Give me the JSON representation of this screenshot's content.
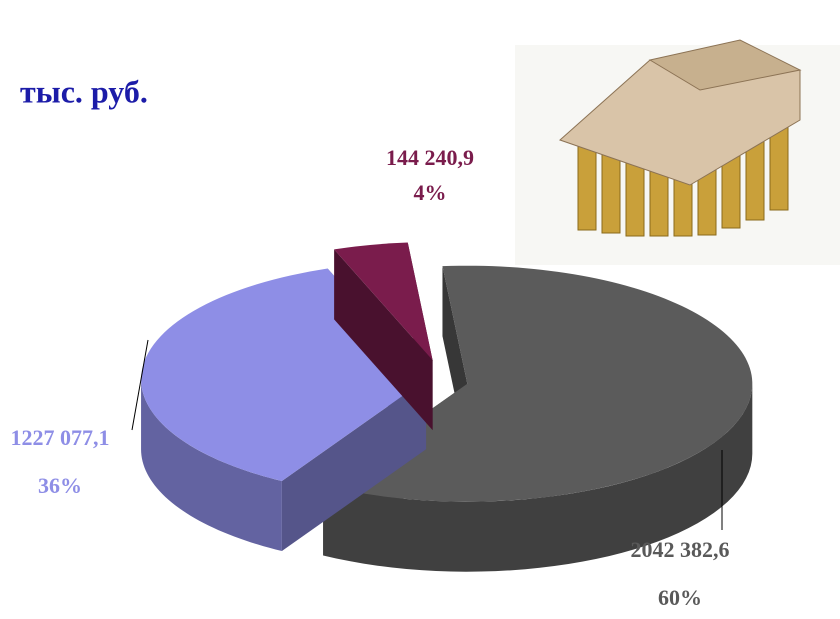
{
  "chart_data": {
    "type": "pie3d",
    "subtitle": "тыс. руб.",
    "values": [
      2042382.6,
      1227077.1,
      144240.9
    ],
    "value_labels": [
      "2042 382,6",
      "1227 077,1",
      "144 240,9"
    ],
    "percents": [
      {
        "value": 60,
        "label": "60%"
      },
      {
        "value": 36,
        "label": "36%"
      },
      {
        "value": 4,
        "label": "4%"
      }
    ],
    "colors": [
      "#5b5b5b",
      "#8e8ee6",
      "#7a1c4c"
    ]
  }
}
